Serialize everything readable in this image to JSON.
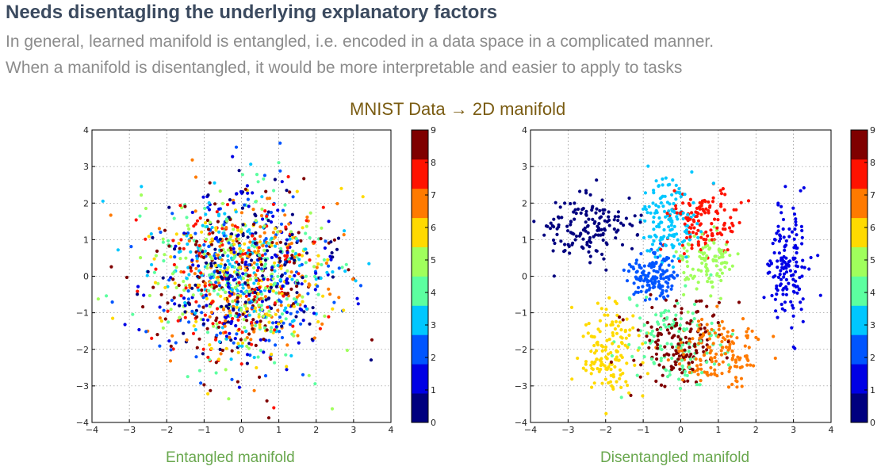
{
  "slide": {
    "title": "Needs disentagling the underlying explanatory factors",
    "subtitle_line1": "In general, learned manifold is entangled, i.e. encoded in a data space in a complicated manner.",
    "subtitle_line2": "When a manifold is disentangled, it would be more interpretable and easier to apply to tasks",
    "center_label": "MNIST Data → 2D manifold",
    "left_caption": "Entangled manifold",
    "right_caption": "Disentangled manifold"
  },
  "colors": {
    "title": "#3b4a5f",
    "subtitle": "#8c8c8c",
    "center_label": "#7a5c12",
    "caption": "#6aa84f",
    "colormap_jet": [
      "#00007f",
      "#0000e5",
      "#0055ff",
      "#00c7ff",
      "#5cffa0",
      "#a0ff5c",
      "#ffda00",
      "#ff7a00",
      "#ff1200",
      "#7f0000"
    ]
  },
  "chart_data": [
    {
      "type": "scatter",
      "name": "Entangled manifold",
      "xlim": [
        -4,
        4
      ],
      "ylim": [
        -4,
        4
      ],
      "xticks": [
        -4,
        -3,
        -2,
        -1,
        0,
        1,
        2,
        3,
        4
      ],
      "yticks": [
        -4,
        -3,
        -2,
        -1,
        0,
        1,
        2,
        3,
        4
      ],
      "grid": true,
      "colorbar": {
        "min": 0,
        "max": 9,
        "ticks": [
          0,
          1,
          2,
          3,
          4,
          5,
          6,
          7,
          8,
          9
        ],
        "colormap": "jet"
      },
      "classes": [
        {
          "digit": 0,
          "center": [
            0,
            0
          ],
          "spread": [
            1.2,
            1.2
          ],
          "count": 140
        },
        {
          "digit": 1,
          "center": [
            0,
            0
          ],
          "spread": [
            1.2,
            1.2
          ],
          "count": 140
        },
        {
          "digit": 2,
          "center": [
            0,
            0
          ],
          "spread": [
            1.2,
            1.2
          ],
          "count": 140
        },
        {
          "digit": 3,
          "center": [
            0,
            0
          ],
          "spread": [
            1.2,
            1.2
          ],
          "count": 140
        },
        {
          "digit": 4,
          "center": [
            0,
            0
          ],
          "spread": [
            1.2,
            1.2
          ],
          "count": 140
        },
        {
          "digit": 5,
          "center": [
            0,
            0
          ],
          "spread": [
            1.2,
            1.2
          ],
          "count": 140
        },
        {
          "digit": 6,
          "center": [
            0,
            0
          ],
          "spread": [
            1.2,
            1.2
          ],
          "count": 140
        },
        {
          "digit": 7,
          "center": [
            0,
            0
          ],
          "spread": [
            1.2,
            1.2
          ],
          "count": 140
        },
        {
          "digit": 8,
          "center": [
            0,
            0
          ],
          "spread": [
            1.2,
            1.2
          ],
          "count": 140
        },
        {
          "digit": 9,
          "center": [
            0,
            0
          ],
          "spread": [
            1.2,
            1.2
          ],
          "count": 140
        }
      ]
    },
    {
      "type": "scatter",
      "name": "Disentangled manifold",
      "xlim": [
        -4,
        4
      ],
      "ylim": [
        -4,
        4
      ],
      "xticks": [
        -4,
        -3,
        -2,
        -1,
        0,
        1,
        2,
        3,
        4
      ],
      "yticks": [
        -4,
        -3,
        -2,
        -1,
        0,
        1,
        2,
        3,
        4
      ],
      "grid": true,
      "colorbar": {
        "min": 0,
        "max": 9,
        "ticks": [
          0,
          1,
          2,
          3,
          4,
          5,
          6,
          7,
          8,
          9
        ],
        "colormap": "jet"
      },
      "classes": [
        {
          "digit": 0,
          "center": [
            -2.5,
            1.3
          ],
          "spread": [
            0.6,
            0.4
          ],
          "count": 150
        },
        {
          "digit": 1,
          "center": [
            2.8,
            0.3
          ],
          "spread": [
            0.3,
            0.8
          ],
          "count": 150
        },
        {
          "digit": 2,
          "center": [
            -0.7,
            0.0
          ],
          "spread": [
            0.35,
            0.3
          ],
          "count": 140
        },
        {
          "digit": 3,
          "center": [
            -0.3,
            1.6
          ],
          "spread": [
            0.35,
            0.6
          ],
          "count": 140
        },
        {
          "digit": 4,
          "center": [
            -0.1,
            -1.7
          ],
          "spread": [
            0.7,
            0.6
          ],
          "count": 130
        },
        {
          "digit": 5,
          "center": [
            0.7,
            0.4
          ],
          "spread": [
            0.35,
            0.4
          ],
          "count": 100
        },
        {
          "digit": 6,
          "center": [
            -1.9,
            -2.1
          ],
          "spread": [
            0.4,
            0.6
          ],
          "count": 140
        },
        {
          "digit": 7,
          "center": [
            1.0,
            -2.1
          ],
          "spread": [
            0.6,
            0.5
          ],
          "count": 150
        },
        {
          "digit": 8,
          "center": [
            0.6,
            1.5
          ],
          "spread": [
            0.4,
            0.5
          ],
          "count": 130
        },
        {
          "digit": 9,
          "center": [
            -0.1,
            -1.8
          ],
          "spread": [
            0.6,
            0.6
          ],
          "count": 140
        }
      ]
    }
  ]
}
